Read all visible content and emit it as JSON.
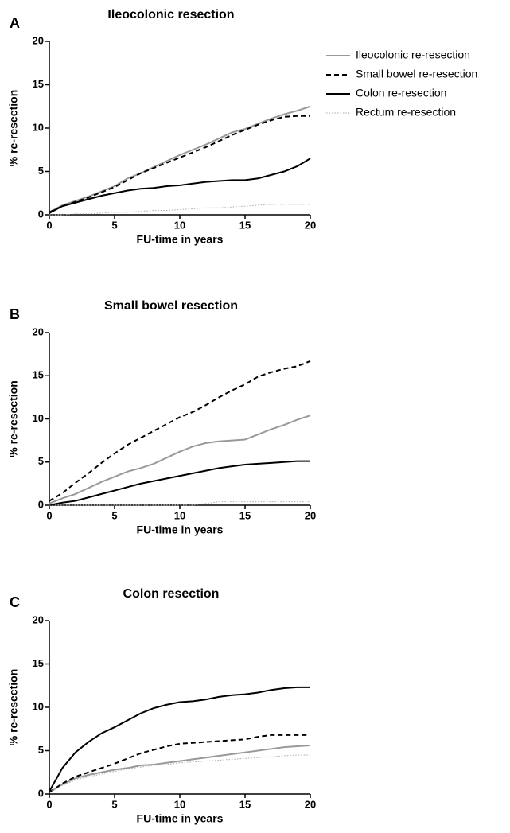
{
  "chart_data": [
    {
      "type": "line",
      "label": "A",
      "title": "Ileocolonic resection",
      "xlabel": "FU-time in years",
      "ylabel": "% re-resection",
      "x": [
        0,
        1,
        2,
        3,
        4,
        5,
        6,
        7,
        8,
        9,
        10,
        11,
        12,
        13,
        14,
        15,
        16,
        17,
        18,
        19,
        20
      ],
      "xlim": [
        0,
        20
      ],
      "ylim": [
        0,
        20
      ],
      "xticks": [
        0,
        5,
        10,
        15,
        20
      ],
      "yticks": [
        0,
        5,
        10,
        15,
        20
      ],
      "legend": "top-right",
      "series": [
        {
          "name": "Ileocolonic re-resection",
          "color": "#999999",
          "dash": "solid",
          "values": [
            0.3,
            1.1,
            1.6,
            2.1,
            2.7,
            3.3,
            4.2,
            4.8,
            5.5,
            6.2,
            6.9,
            7.5,
            8.1,
            8.8,
            9.5,
            9.9,
            10.5,
            11.1,
            11.6,
            12.0,
            12.5
          ]
        },
        {
          "name": "Small bowel re-resection",
          "color": "#000000",
          "dash": "dashed",
          "values": [
            0.3,
            1.0,
            1.5,
            2.0,
            2.6,
            3.2,
            4.0,
            4.8,
            5.4,
            6.0,
            6.6,
            7.2,
            7.8,
            8.5,
            9.2,
            9.8,
            10.4,
            10.9,
            11.3,
            11.4,
            11.4
          ]
        },
        {
          "name": "Colon re-resection",
          "color": "#000000",
          "dash": "solid",
          "values": [
            0.2,
            1.0,
            1.4,
            1.8,
            2.2,
            2.5,
            2.8,
            3.0,
            3.1,
            3.3,
            3.4,
            3.6,
            3.8,
            3.9,
            4.0,
            4.0,
            4.2,
            4.6,
            5.0,
            5.6,
            6.5
          ]
        },
        {
          "name": "Rectum re-resection",
          "color": "#aaaaaa",
          "dash": "dotted",
          "values": [
            0,
            0,
            0.1,
            0.1,
            0.2,
            0.3,
            0.3,
            0.4,
            0.5,
            0.5,
            0.6,
            0.7,
            0.8,
            0.8,
            0.9,
            1.0,
            1.1,
            1.2,
            1.2,
            1.2,
            1.2
          ]
        }
      ]
    },
    {
      "type": "line",
      "label": "B",
      "title": "Small bowel resection",
      "xlabel": "FU-time in years",
      "ylabel": "% re-resection",
      "x": [
        0,
        1,
        2,
        3,
        4,
        5,
        6,
        7,
        8,
        9,
        10,
        11,
        12,
        13,
        14,
        15,
        16,
        17,
        18,
        19,
        20
      ],
      "xlim": [
        0,
        20
      ],
      "ylim": [
        0,
        20
      ],
      "xticks": [
        0,
        5,
        10,
        15,
        20
      ],
      "yticks": [
        0,
        5,
        10,
        15,
        20
      ],
      "series": [
        {
          "color": "#999999",
          "dash": "solid",
          "values": [
            0.2,
            0.8,
            1.3,
            2.0,
            2.7,
            3.3,
            3.9,
            4.3,
            4.8,
            5.5,
            6.2,
            6.8,
            7.2,
            7.4,
            7.5,
            7.6,
            8.2,
            8.8,
            9.3,
            9.9,
            10.4
          ]
        },
        {
          "color": "#000000",
          "dash": "dashed",
          "values": [
            0.5,
            1.4,
            2.6,
            3.7,
            4.9,
            6.0,
            7.0,
            7.8,
            8.6,
            9.4,
            10.2,
            10.8,
            11.6,
            12.5,
            13.3,
            14.0,
            14.9,
            15.4,
            15.8,
            16.1,
            16.7
          ]
        },
        {
          "color": "#000000",
          "dash": "solid",
          "values": [
            0,
            0.3,
            0.5,
            0.9,
            1.3,
            1.7,
            2.1,
            2.5,
            2.8,
            3.1,
            3.4,
            3.7,
            4.0,
            4.3,
            4.5,
            4.7,
            4.8,
            4.9,
            5.0,
            5.1,
            5.1
          ]
        },
        {
          "color": "#aaaaaa",
          "dash": "dotted",
          "values": [
            0,
            0,
            0,
            0,
            0,
            0,
            0,
            0,
            0,
            0,
            0,
            0,
            0.2,
            0.4,
            0.4,
            0.4,
            0.4,
            0.4,
            0.4,
            0.4,
            0.4
          ]
        }
      ]
    },
    {
      "type": "line",
      "label": "C",
      "title": "Colon resection",
      "xlabel": "FU-time in years",
      "ylabel": "% re-resection",
      "x": [
        0,
        1,
        2,
        3,
        4,
        5,
        6,
        7,
        8,
        9,
        10,
        11,
        12,
        13,
        14,
        15,
        16,
        17,
        18,
        19,
        20
      ],
      "xlim": [
        0,
        20
      ],
      "ylim": [
        0,
        20
      ],
      "xticks": [
        0,
        5,
        10,
        15,
        20
      ],
      "yticks": [
        0,
        5,
        10,
        15,
        20
      ],
      "series": [
        {
          "color": "#999999",
          "dash": "solid",
          "values": [
            0.2,
            1.1,
            1.8,
            2.2,
            2.5,
            2.8,
            3.0,
            3.3,
            3.4,
            3.6,
            3.8,
            4.0,
            4.2,
            4.4,
            4.6,
            4.8,
            5.0,
            5.2,
            5.4,
            5.5,
            5.6
          ]
        },
        {
          "color": "#000000",
          "dash": "dashed",
          "values": [
            0.2,
            1.2,
            2.0,
            2.5,
            3.0,
            3.5,
            4.1,
            4.7,
            5.1,
            5.5,
            5.8,
            5.9,
            6.0,
            6.1,
            6.2,
            6.3,
            6.6,
            6.8,
            6.8,
            6.8,
            6.8
          ]
        },
        {
          "color": "#000000",
          "dash": "solid",
          "values": [
            0.3,
            3.0,
            4.8,
            6.0,
            7.0,
            7.7,
            8.5,
            9.3,
            9.9,
            10.3,
            10.6,
            10.7,
            10.9,
            11.2,
            11.4,
            11.5,
            11.7,
            12.0,
            12.2,
            12.3,
            12.3
          ]
        },
        {
          "color": "#aaaaaa",
          "dash": "dotted",
          "values": [
            0.2,
            1.0,
            1.6,
            2.0,
            2.3,
            2.6,
            2.9,
            3.1,
            3.3,
            3.4,
            3.6,
            3.7,
            3.8,
            3.9,
            4.0,
            4.1,
            4.2,
            4.3,
            4.4,
            4.5,
            4.5
          ]
        }
      ]
    }
  ]
}
